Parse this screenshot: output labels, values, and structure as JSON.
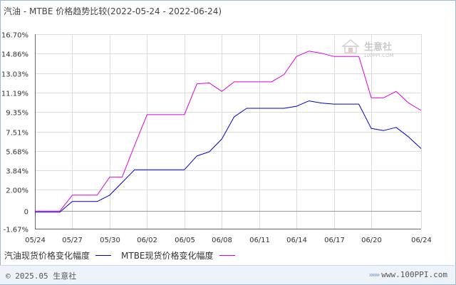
{
  "title": "汽油 - MTBE 价格趋势比较(2022-05-24 - 2022-06-24)",
  "watermark": {
    "name": "生意社",
    "url": "100PPI.COM"
  },
  "footer": {
    "copyright": "© 2025.05 生意社",
    "website": "www.100PPI.com",
    "arrows": "»»»"
  },
  "chart_data": {
    "type": "line",
    "title": "汽油 - MTBE 价格趋势比较(2022-05-24 - 2022-06-24)",
    "xlabel": "",
    "ylabel": "",
    "ylim": [
      -1.67,
      16.7
    ],
    "y_ticks": [
      "16.70%",
      "14.86%",
      "13.03%",
      "11.19%",
      "9.35%",
      "7.51%",
      "5.68%",
      "3.84%",
      "2.00%",
      "0",
      "-1.67%"
    ],
    "y_tick_values": [
      16.7,
      14.86,
      13.03,
      11.19,
      9.35,
      7.51,
      5.68,
      3.84,
      2.0,
      0,
      -1.67
    ],
    "x_ticks": [
      "05/24",
      "05/27",
      "05/30",
      "06/02",
      "06/05",
      "06/08",
      "06/11",
      "06/14",
      "06/17",
      "06/20",
      "06/24"
    ],
    "x_tick_days": [
      0,
      3,
      6,
      9,
      12,
      15,
      18,
      21,
      24,
      27,
      31
    ],
    "x_range_days": [
      0,
      31
    ],
    "grid": true,
    "legend_position": "bottom-left",
    "series": [
      {
        "name": "汽油现货价格变化幅度",
        "color": "#0000cc",
        "x": [
          0,
          1,
          2,
          3,
          4,
          5,
          6,
          7,
          8,
          9,
          10,
          11,
          12,
          13,
          14,
          15,
          16,
          17,
          18,
          19,
          20,
          21,
          22,
          23,
          24,
          25,
          26,
          27,
          28,
          29,
          30,
          31
        ],
        "values": [
          -0.1,
          -0.1,
          -0.1,
          0.9,
          0.9,
          0.9,
          1.5,
          2.7,
          3.9,
          3.9,
          3.9,
          3.9,
          3.9,
          5.2,
          5.6,
          6.8,
          8.9,
          9.7,
          9.7,
          9.7,
          9.7,
          9.9,
          10.4,
          10.2,
          10.1,
          10.1,
          10.1,
          7.8,
          7.6,
          7.9,
          7.0,
          5.9
        ]
      },
      {
        "name": "MTBE现货价格变化幅度",
        "color": "#dd00dd",
        "x": [
          0,
          1,
          2,
          3,
          4,
          5,
          6,
          7,
          8,
          9,
          10,
          11,
          12,
          13,
          14,
          15,
          16,
          17,
          18,
          19,
          20,
          21,
          22,
          23,
          24,
          25,
          26,
          27,
          28,
          29,
          30,
          31
        ],
        "values": [
          0.0,
          0.0,
          0.0,
          1.5,
          1.5,
          1.5,
          3.2,
          3.2,
          6.2,
          9.1,
          9.1,
          9.1,
          9.1,
          12.0,
          12.1,
          11.3,
          12.2,
          12.2,
          12.2,
          12.2,
          12.9,
          14.6,
          15.1,
          14.9,
          14.6,
          14.6,
          14.6,
          10.7,
          10.7,
          11.3,
          10.2,
          9.5
        ]
      }
    ]
  }
}
